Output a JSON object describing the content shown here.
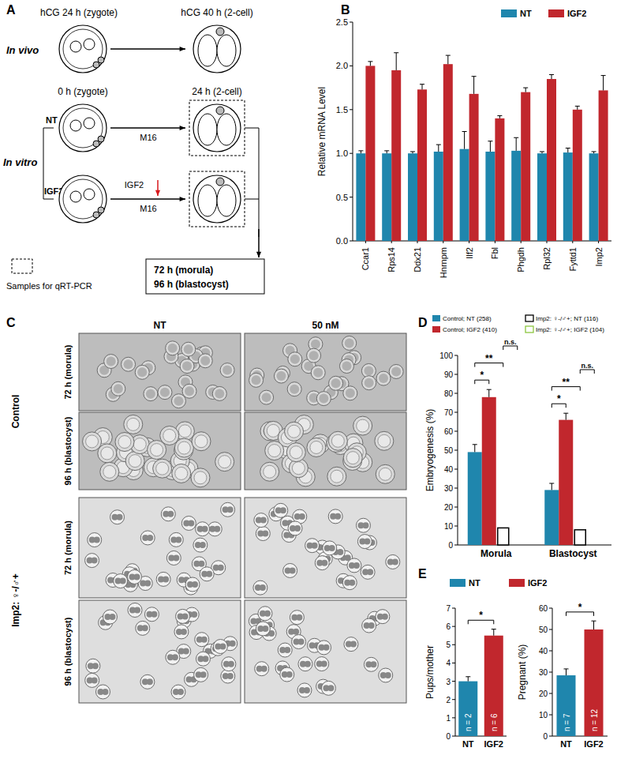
{
  "chart_data": [
    {
      "panel_label": "B",
      "type": "bar",
      "y_label": "Relative mRNA Level",
      "categories": [
        "Ccar1",
        "Rps14",
        "Ddx21",
        "Hnrnpm",
        "Ilf2",
        "Fbl",
        "Phgdh",
        "Rpl32",
        "Fyttd1",
        "Imp2"
      ],
      "series": [
        {
          "name": "NT",
          "color": "#1f86ad",
          "values": [
            1.0,
            1.0,
            1.0,
            1.02,
            1.05,
            1.02,
            1.03,
            1.0,
            1.01,
            1.0
          ],
          "errors": [
            0.03,
            0.03,
            0.02,
            0.08,
            0.2,
            0.12,
            0.15,
            0.02,
            0.05,
            0.02
          ]
        },
        {
          "name": "IGF2",
          "color": "#c1272d",
          "values": [
            2.0,
            1.95,
            1.73,
            2.02,
            1.68,
            1.4,
            1.7,
            1.85,
            1.5,
            1.72
          ],
          "errors": [
            0.05,
            0.2,
            0.06,
            0.1,
            0.2,
            0.03,
            0.05,
            0.05,
            0.04,
            0.17
          ]
        }
      ],
      "ylim": [
        0,
        2.5
      ],
      "yticks": [
        {
          "value": 0,
          "label": "0.0"
        },
        {
          "value": 0.5,
          "label": "0.5"
        },
        {
          "value": 1,
          "label": "1.0"
        },
        {
          "value": 1.5,
          "label": "1.5"
        },
        {
          "value": 2,
          "label": "2.0"
        },
        {
          "value": 2.5,
          "label": "2.5"
        }
      ],
      "legend": "top-right"
    },
    {
      "panel_label": "D",
      "type": "bar",
      "y_label": "Embryogenesis (%)",
      "categories": [
        "Morula",
        "Blastocyst"
      ],
      "series": [
        {
          "name": "Control; NT (258)",
          "color": "#1f86ad",
          "values": [
            49,
            29
          ],
          "errors": [
            4,
            3.5
          ]
        },
        {
          "name": "Control; IGF2 (410)",
          "color": "#c1272d",
          "values": [
            78,
            66
          ],
          "errors": [
            4,
            3.5
          ]
        },
        {
          "name": "Imp2: ♀-/♂+; NT (116)",
          "color": "#000000",
          "marker": "hollow",
          "values": [
            9,
            8
          ],
          "errors": [
            0,
            0
          ]
        },
        {
          "name": "Imp2: ♀-/♂+; IGF2 (104)",
          "color": "#8cc63f",
          "marker": "hollow",
          "values": [
            0,
            0
          ],
          "errors": [
            0,
            0
          ]
        }
      ],
      "ylim": [
        0,
        100
      ],
      "yticks": [
        0,
        10,
        20,
        30,
        40,
        50,
        60,
        70,
        80,
        90,
        100
      ],
      "legend": "top",
      "annotations": [
        {
          "text": "*",
          "category": "Morula",
          "from": "Control; NT (258)",
          "to": "Control; IGF2 (410)"
        },
        {
          "text": "**",
          "category": "Morula",
          "from": "Control; NT (258)",
          "to": "Imp2: ♀-/♂+; NT (116)"
        },
        {
          "text": "n.s.",
          "category": "Morula",
          "from": "Imp2: ♀-/♂+; NT (116)",
          "to": "Imp2: ♀-/♂+; IGF2 (104)"
        },
        {
          "text": "*",
          "category": "Blastocyst",
          "from": "Control; NT (258)",
          "to": "Control; IGF2 (410)"
        },
        {
          "text": "**",
          "category": "Blastocyst",
          "from": "Control; NT (258)",
          "to": "Imp2: ♀-/♂+; NT (116)"
        },
        {
          "text": "n.s.",
          "category": "Blastocyst",
          "from": "Imp2: ♀-/♂+; NT (116)",
          "to": "Imp2: ♀-/♂+; IGF2 (104)"
        }
      ]
    },
    {
      "panel_label": "E",
      "type": "bar",
      "y_label": "Pups/mother",
      "categories": [
        "NT",
        "IGF2"
      ],
      "values": [
        3.0,
        5.5
      ],
      "errors": [
        0.25,
        0.35
      ],
      "colors": [
        "#1f86ad",
        "#c1272d"
      ],
      "n_labels": [
        "n = 2",
        "n = 6"
      ],
      "ylim": [
        0,
        7
      ],
      "yticks": [
        0,
        1,
        2,
        3,
        4,
        5,
        6,
        7
      ],
      "legend": "top",
      "annotations": [
        {
          "text": "*",
          "from": "NT",
          "to": "IGF2"
        }
      ]
    },
    {
      "type": "bar",
      "y_label": "Pregnant (%)",
      "categories": [
        "NT",
        "IGF2"
      ],
      "values": [
        28.5,
        50
      ],
      "errors": [
        3,
        4
      ],
      "colors": [
        "#1f86ad",
        "#c1272d"
      ],
      "n_labels": [
        "n = 7",
        "n = 12"
      ],
      "ylim": [
        0,
        60
      ],
      "yticks": [
        0,
        10,
        20,
        30,
        40,
        50,
        60
      ],
      "annotations": [
        {
          "text": "*",
          "from": "NT",
          "to": "IGF2"
        }
      ]
    }
  ],
  "diagram": {
    "panel_label": "A",
    "in_vivo": "In vivo",
    "in_vitro": "In vitro",
    "vivo_start": "hCG 24 h (zygote)",
    "vivo_end": "hCG 40 h (2-cell)",
    "vitro_start": "0 h (zygote)",
    "vitro_end": "24 h (2-cell)",
    "groups": [
      "NT",
      "IGF2"
    ],
    "medium": "M16",
    "treatment": "IGF2",
    "later": [
      "72 h (morula)",
      "96 h (blastocyst)"
    ],
    "sample_legend": "Samples for qRT-PCR"
  },
  "images": {
    "panel_label": "C",
    "columns": [
      "NT",
      "50 nM"
    ],
    "groups": [
      {
        "label": "Control",
        "rows": [
          "72 h (morula)",
          "96 h (blastocyst)"
        ]
      },
      {
        "label": "Imp2: ♀-/♂+",
        "rows": [
          "72 h (morula)",
          "96 h (blastocyst)"
        ]
      }
    ]
  }
}
